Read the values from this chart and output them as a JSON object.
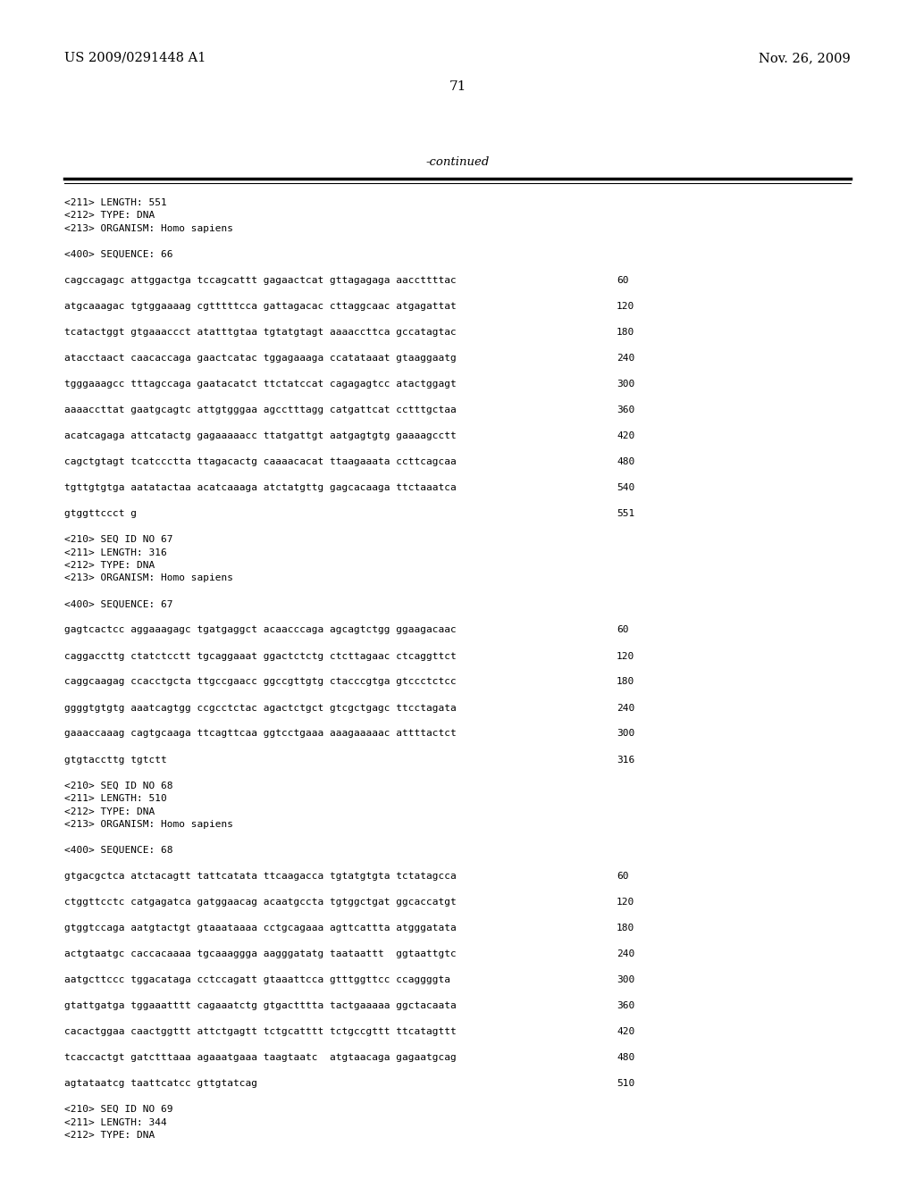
{
  "background_color": "#ffffff",
  "header_left": "US 2009/0291448 A1",
  "header_right": "Nov. 26, 2009",
  "page_number": "71",
  "continued_label": "-continued",
  "content_lines": [
    {
      "text": "<211> LENGTH: 551",
      "num": null,
      "type": "meta"
    },
    {
      "text": "<212> TYPE: DNA",
      "num": null,
      "type": "meta"
    },
    {
      "text": "<213> ORGANISM: Homo sapiens",
      "num": null,
      "type": "meta"
    },
    {
      "text": "",
      "num": null,
      "type": "blank"
    },
    {
      "text": "<400> SEQUENCE: 66",
      "num": null,
      "type": "meta"
    },
    {
      "text": "",
      "num": null,
      "type": "blank"
    },
    {
      "text": "cagccagagc attggactga tccagcattt gagaactcat gttagagaga aaccttttac",
      "num": "60",
      "type": "seq"
    },
    {
      "text": "",
      "num": null,
      "type": "blank"
    },
    {
      "text": "atgcaaagac tgtggaaaag cgtttttcca gattagacac cttaggcaac atgagattat",
      "num": "120",
      "type": "seq"
    },
    {
      "text": "",
      "num": null,
      "type": "blank"
    },
    {
      "text": "tcatactggt gtgaaaccct atatttgtaa tgtatgtagt aaaaccttca gccatagtac",
      "num": "180",
      "type": "seq"
    },
    {
      "text": "",
      "num": null,
      "type": "blank"
    },
    {
      "text": "atacctaact caacaccaga gaactcatac tggagaaaga ccatataaat gtaaggaatg",
      "num": "240",
      "type": "seq"
    },
    {
      "text": "",
      "num": null,
      "type": "blank"
    },
    {
      "text": "tgggaaagcc tttagccaga gaatacatct ttctatccat cagagagtcc atactggagt",
      "num": "300",
      "type": "seq"
    },
    {
      "text": "",
      "num": null,
      "type": "blank"
    },
    {
      "text": "aaaaccttat gaatgcagtc attgtgggaa agcctttagg catgattcat cctttgctaa",
      "num": "360",
      "type": "seq"
    },
    {
      "text": "",
      "num": null,
      "type": "blank"
    },
    {
      "text": "acatcagaga attcatactg gagaaaaacc ttatgattgt aatgagtgtg gaaaagcctt",
      "num": "420",
      "type": "seq"
    },
    {
      "text": "",
      "num": null,
      "type": "blank"
    },
    {
      "text": "cagctgtagt tcatccctta ttagacactg caaaacacat ttaagaaata ccttcagcaa",
      "num": "480",
      "type": "seq"
    },
    {
      "text": "",
      "num": null,
      "type": "blank"
    },
    {
      "text": "tgttgtgtga aatatactaa acatcaaaga atctatgttg gagcacaaga ttctaaatca",
      "num": "540",
      "type": "seq"
    },
    {
      "text": "",
      "num": null,
      "type": "blank"
    },
    {
      "text": "gtggttccct g",
      "num": "551",
      "type": "seq"
    },
    {
      "text": "",
      "num": null,
      "type": "blank"
    },
    {
      "text": "<210> SEQ ID NO 67",
      "num": null,
      "type": "meta"
    },
    {
      "text": "<211> LENGTH: 316",
      "num": null,
      "type": "meta"
    },
    {
      "text": "<212> TYPE: DNA",
      "num": null,
      "type": "meta"
    },
    {
      "text": "<213> ORGANISM: Homo sapiens",
      "num": null,
      "type": "meta"
    },
    {
      "text": "",
      "num": null,
      "type": "blank"
    },
    {
      "text": "<400> SEQUENCE: 67",
      "num": null,
      "type": "meta"
    },
    {
      "text": "",
      "num": null,
      "type": "blank"
    },
    {
      "text": "gagtcactcc aggaaagagc tgatgaggct acaacccaga agcagtctgg ggaagacaac",
      "num": "60",
      "type": "seq"
    },
    {
      "text": "",
      "num": null,
      "type": "blank"
    },
    {
      "text": "caggaccttg ctatctcctt tgcaggaaat ggactctctg ctcttagaac ctcaggttct",
      "num": "120",
      "type": "seq"
    },
    {
      "text": "",
      "num": null,
      "type": "blank"
    },
    {
      "text": "caggcaagag ccacctgcta ttgccgaacc ggccgttgtg ctacccgtga gtccctctcc",
      "num": "180",
      "type": "seq"
    },
    {
      "text": "",
      "num": null,
      "type": "blank"
    },
    {
      "text": "ggggtgtgtg aaatcagtgg ccgcctctac agactctgct gtcgctgagc ttcctagata",
      "num": "240",
      "type": "seq"
    },
    {
      "text": "",
      "num": null,
      "type": "blank"
    },
    {
      "text": "gaaaccaaag cagtgcaaga ttcagttcaa ggtcctgaaa aaagaaaaac attttactct",
      "num": "300",
      "type": "seq"
    },
    {
      "text": "",
      "num": null,
      "type": "blank"
    },
    {
      "text": "gtgtaccttg tgtctt",
      "num": "316",
      "type": "seq"
    },
    {
      "text": "",
      "num": null,
      "type": "blank"
    },
    {
      "text": "<210> SEQ ID NO 68",
      "num": null,
      "type": "meta"
    },
    {
      "text": "<211> LENGTH: 510",
      "num": null,
      "type": "meta"
    },
    {
      "text": "<212> TYPE: DNA",
      "num": null,
      "type": "meta"
    },
    {
      "text": "<213> ORGANISM: Homo sapiens",
      "num": null,
      "type": "meta"
    },
    {
      "text": "",
      "num": null,
      "type": "blank"
    },
    {
      "text": "<400> SEQUENCE: 68",
      "num": null,
      "type": "meta"
    },
    {
      "text": "",
      "num": null,
      "type": "blank"
    },
    {
      "text": "gtgacgctca atctacagtt tattcatata ttcaagacca tgtatgtgta tctatagcca",
      "num": "60",
      "type": "seq"
    },
    {
      "text": "",
      "num": null,
      "type": "blank"
    },
    {
      "text": "ctggttcctc catgagatca gatggaacag acaatgccta tgtggctgat ggcaccatgt",
      "num": "120",
      "type": "seq"
    },
    {
      "text": "",
      "num": null,
      "type": "blank"
    },
    {
      "text": "gtggtccaga aatgtactgt gtaaataaaa cctgcagaaa agttcattta atgggatata",
      "num": "180",
      "type": "seq"
    },
    {
      "text": "",
      "num": null,
      "type": "blank"
    },
    {
      "text": "actgtaatgc caccacaaaa tgcaaaggga aagggatatg taataattt  ggtaattgtc",
      "num": "240",
      "type": "seq"
    },
    {
      "text": "",
      "num": null,
      "type": "blank"
    },
    {
      "text": "aatgcttccc tggacataga cctccagatt gtaaattcca gtttggttcc ccaggggta",
      "num": "300",
      "type": "seq"
    },
    {
      "text": "",
      "num": null,
      "type": "blank"
    },
    {
      "text": "gtattgatga tggaaatttt cagaaatctg gtgactttta tactgaaaaa ggctacaata",
      "num": "360",
      "type": "seq"
    },
    {
      "text": "",
      "num": null,
      "type": "blank"
    },
    {
      "text": "cacactggaa caactggttt attctgagtt tctgcatttt tctgccgttt ttcatagttt",
      "num": "420",
      "type": "seq"
    },
    {
      "text": "",
      "num": null,
      "type": "blank"
    },
    {
      "text": "tcaccactgt gatctttaaa agaaatgaaa taagtaatc  atgtaacaga gagaatgcag",
      "num": "480",
      "type": "seq"
    },
    {
      "text": "",
      "num": null,
      "type": "blank"
    },
    {
      "text": "agtataatcg taattcatcc gttgtatcag",
      "num": "510",
      "type": "seq"
    },
    {
      "text": "",
      "num": null,
      "type": "blank"
    },
    {
      "text": "<210> SEQ ID NO 69",
      "num": null,
      "type": "meta"
    },
    {
      "text": "<211> LENGTH: 344",
      "num": null,
      "type": "meta"
    },
    {
      "text": "<212> TYPE: DNA",
      "num": null,
      "type": "meta"
    }
  ]
}
